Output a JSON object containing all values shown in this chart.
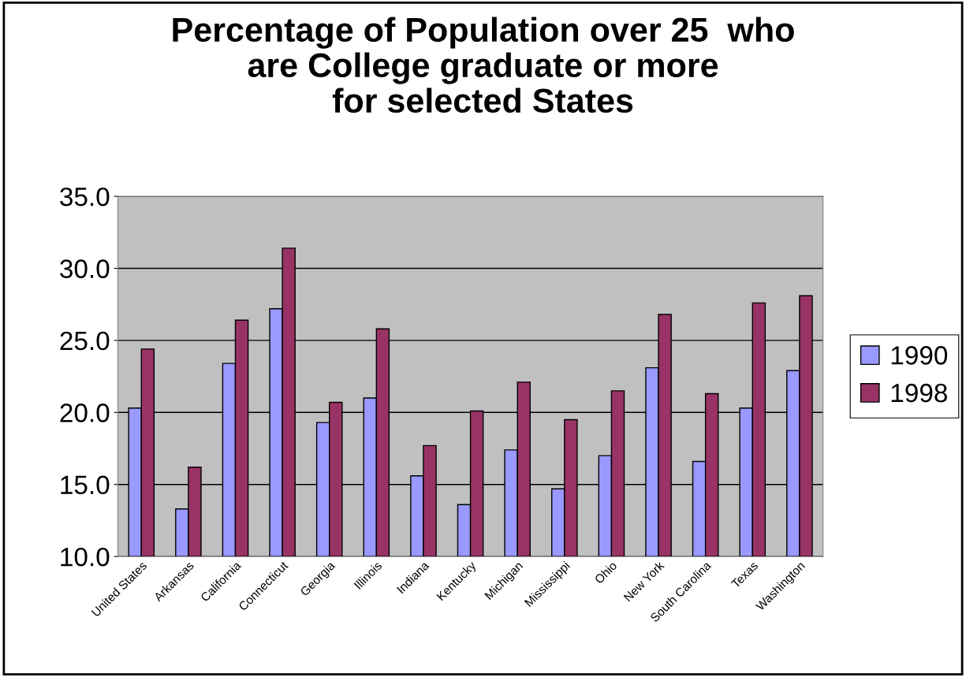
{
  "chart_data": {
    "type": "bar",
    "title": "Percentage of Population over 25  who\nare College graduate or more\nfor selected States",
    "categories": [
      "United States",
      "Arkansas",
      "California",
      "Connecticut",
      "Georgia",
      "Illinois",
      "Indiana",
      "Kentucky",
      "Michigan",
      "Mississippi",
      "Ohio",
      "New York",
      "South Carolina",
      "Texas",
      "Washington"
    ],
    "series": [
      {
        "name": "1990",
        "color": "#9999ff",
        "values": [
          20.3,
          13.3,
          23.4,
          27.2,
          19.3,
          21.0,
          15.6,
          13.6,
          17.4,
          14.7,
          17.0,
          23.1,
          16.6,
          20.3,
          22.9
        ]
      },
      {
        "name": "1998",
        "color": "#993366",
        "values": [
          24.4,
          16.2,
          26.4,
          31.4,
          20.7,
          25.8,
          17.7,
          20.1,
          22.1,
          19.5,
          21.5,
          26.8,
          21.3,
          27.6,
          28.1
        ]
      }
    ],
    "ylim": [
      10,
      35
    ],
    "yticks": [
      {
        "value": 10,
        "label": "10.0"
      },
      {
        "value": 15,
        "label": "15.0"
      },
      {
        "value": 20,
        "label": "20.0"
      },
      {
        "value": 25,
        "label": "25.0"
      },
      {
        "value": 30,
        "label": "30.0"
      },
      {
        "value": 35,
        "label": "35.0"
      }
    ],
    "grid": "y",
    "legend": "right"
  }
}
